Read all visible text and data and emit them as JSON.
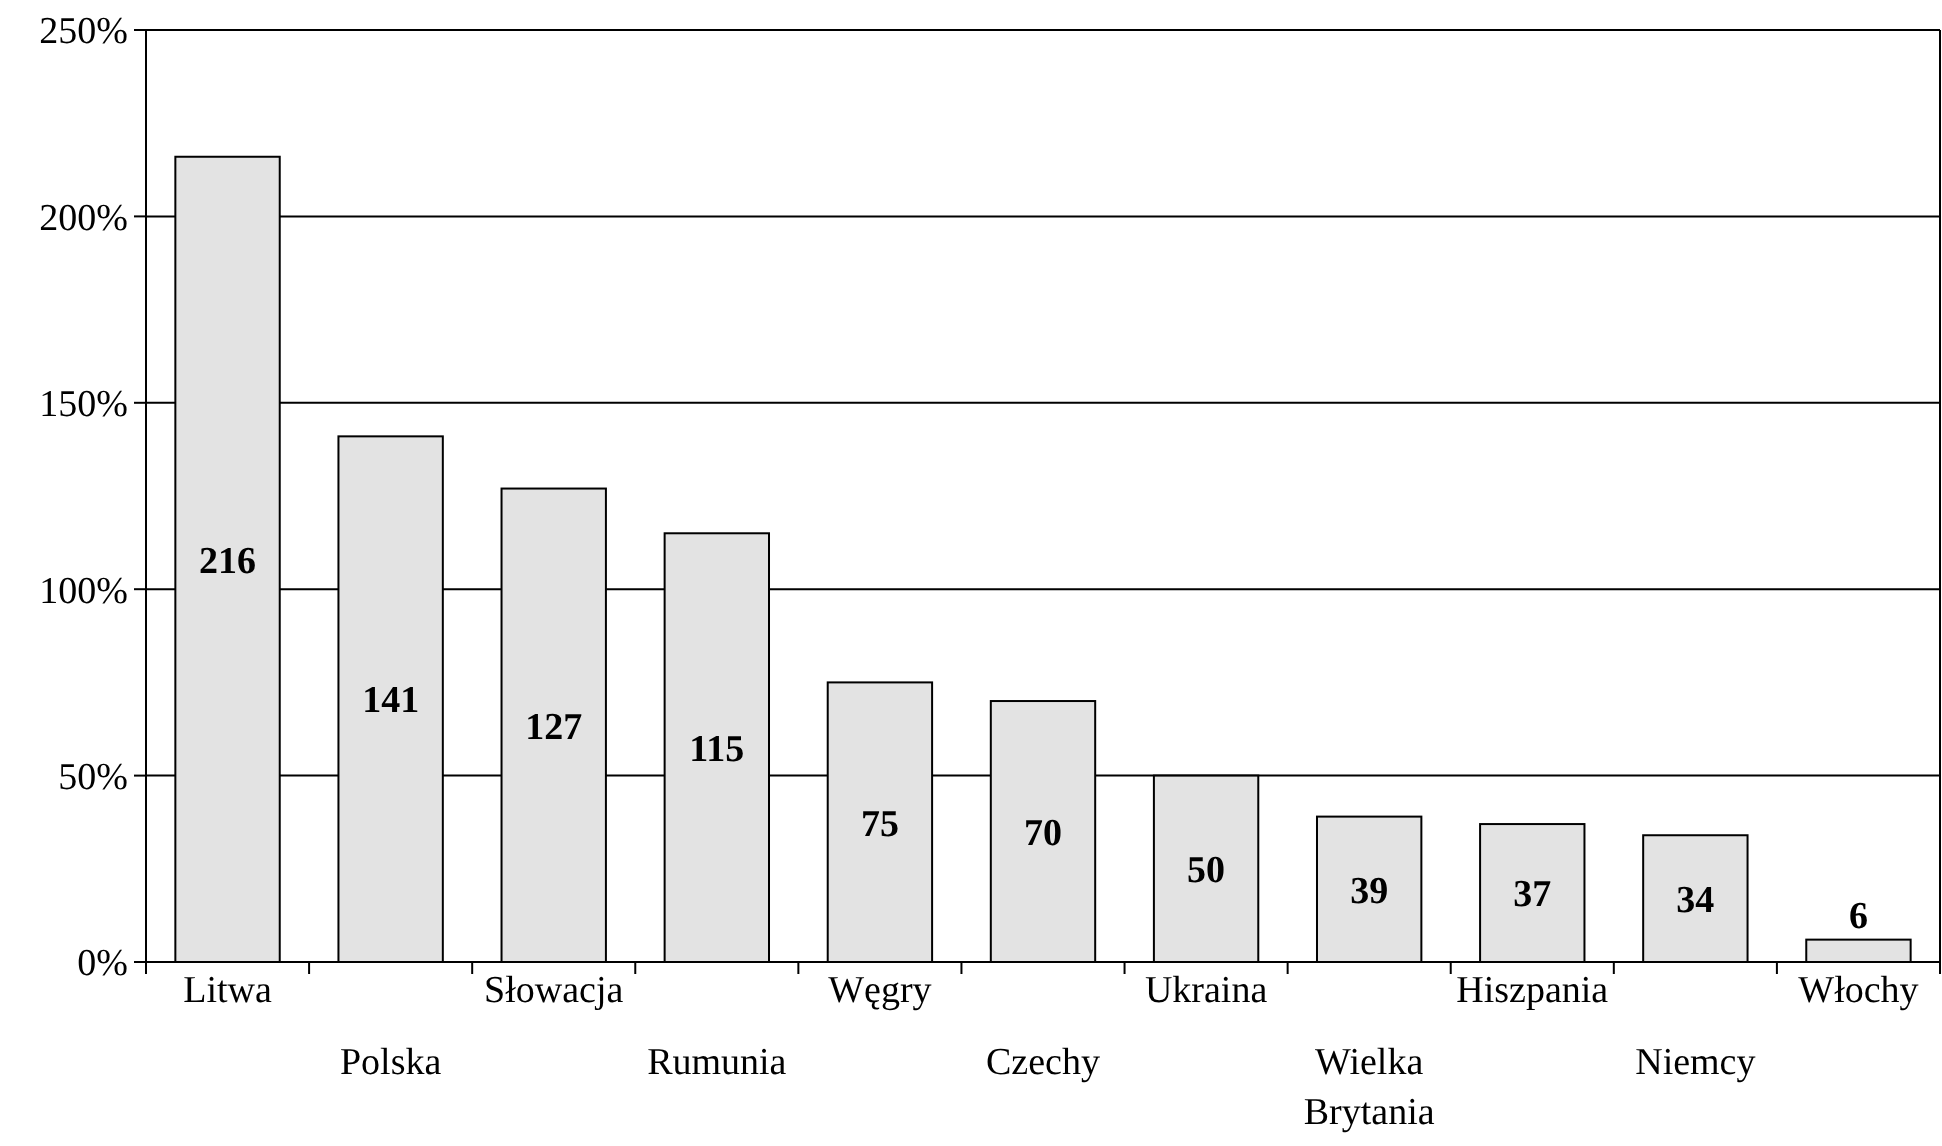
{
  "chart_data": {
    "type": "bar",
    "categories": [
      "Litwa",
      "Polska",
      "Słowacja",
      "Rumunia",
      "Węgry",
      "Czechy",
      "Ukraina",
      "Wielka Brytania",
      "Hiszpania",
      "Niemcy",
      "Włochy"
    ],
    "values": [
      216,
      141,
      127,
      115,
      75,
      70,
      50,
      39,
      37,
      34,
      6
    ],
    "color": "#e3e3e3",
    "data_labels": true,
    "grid": "y",
    "ylim": [
      0,
      250
    ],
    "yticks": [
      {
        "value": 0,
        "label": "0%"
      },
      {
        "value": 50,
        "label": "50%"
      },
      {
        "value": 100,
        "label": "100%"
      },
      {
        "value": 150,
        "label": "150%"
      },
      {
        "value": 200,
        "label": "200%"
      },
      {
        "value": 250,
        "label": "250%"
      }
    ]
  }
}
